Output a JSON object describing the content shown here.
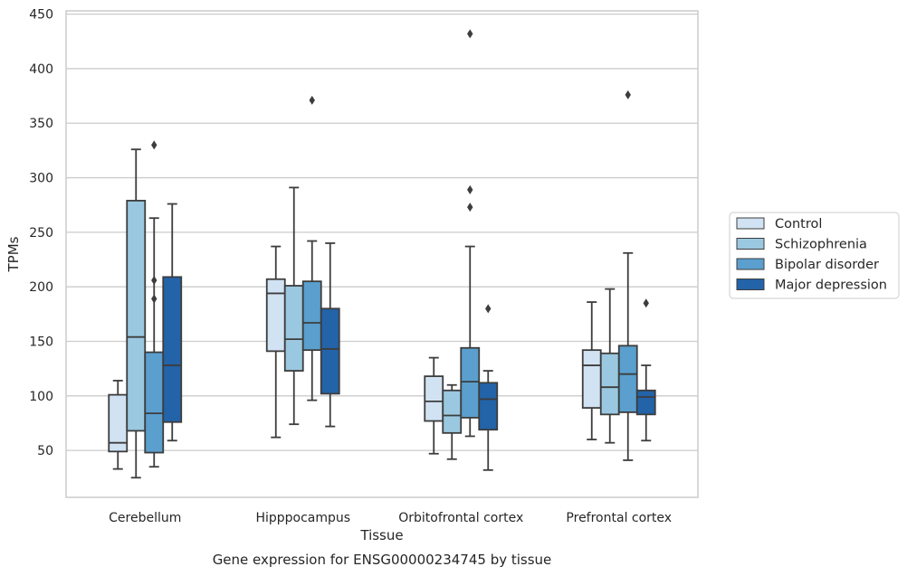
{
  "chart_data": {
    "type": "box",
    "caption": "Gene expression for ENSG00000234745 by tissue",
    "xlabel": "Tissue",
    "ylabel": "TPMs",
    "ylim": [
      7,
      453
    ],
    "yticks": [
      50,
      100,
      150,
      200,
      250,
      300,
      350,
      400,
      450
    ],
    "grid": "horizontal",
    "legend_position": "right",
    "categories": [
      "Cerebellum",
      "Hipppocampus",
      "Orbitofrontal cortex",
      "Prefrontal cortex"
    ],
    "series": [
      {
        "name": "Control",
        "color": "#d1e2f2",
        "boxes": [
          {
            "whislo": 33,
            "q1": 49,
            "med": 57,
            "q3": 101,
            "whishi": 114,
            "fliers": []
          },
          {
            "whislo": 62,
            "q1": 141,
            "med": 194,
            "q3": 207,
            "whishi": 237,
            "fliers": []
          },
          {
            "whislo": 47,
            "q1": 77,
            "med": 95,
            "q3": 118,
            "whishi": 135,
            "fliers": []
          },
          {
            "whislo": 60,
            "q1": 89,
            "med": 128,
            "q3": 142,
            "whishi": 186,
            "fliers": []
          }
        ]
      },
      {
        "name": "Schizophrenia",
        "color": "#9ac8e0",
        "boxes": [
          {
            "whislo": 25,
            "q1": 68,
            "med": 154,
            "q3": 279,
            "whishi": 326,
            "fliers": []
          },
          {
            "whislo": 74,
            "q1": 123,
            "med": 152,
            "q3": 201,
            "whishi": 291,
            "fliers": []
          },
          {
            "whislo": 42,
            "q1": 66,
            "med": 82,
            "q3": 105,
            "whishi": 110,
            "fliers": []
          },
          {
            "whislo": 57,
            "q1": 83,
            "med": 108,
            "q3": 139,
            "whishi": 198,
            "fliers": []
          }
        ]
      },
      {
        "name": "Bipolar disorder",
        "color": "#5a9fce",
        "boxes": [
          {
            "whislo": 35,
            "q1": 48,
            "med": 84,
            "q3": 140,
            "whishi": 263,
            "fliers": [
              189,
              206,
              330
            ]
          },
          {
            "whislo": 96,
            "q1": 142,
            "med": 167,
            "q3": 205,
            "whishi": 242,
            "fliers": [
              371
            ]
          },
          {
            "whislo": 63,
            "q1": 80,
            "med": 113,
            "q3": 144,
            "whishi": 237,
            "fliers": [
              273,
              289,
              432
            ]
          },
          {
            "whislo": 41,
            "q1": 85,
            "med": 120,
            "q3": 146,
            "whishi": 231,
            "fliers": [
              376
            ]
          }
        ]
      },
      {
        "name": "Major depression",
        "color": "#2363a8",
        "boxes": [
          {
            "whislo": 59,
            "q1": 76,
            "med": 128,
            "q3": 209,
            "whishi": 276,
            "fliers": []
          },
          {
            "whislo": 72,
            "q1": 102,
            "med": 143,
            "q3": 180,
            "whishi": 240,
            "fliers": []
          },
          {
            "whislo": 32,
            "q1": 69,
            "med": 97,
            "q3": 112,
            "whishi": 123,
            "fliers": [
              180
            ]
          },
          {
            "whislo": 59,
            "q1": 83,
            "med": 99,
            "q3": 105,
            "whishi": 128,
            "fliers": [
              185
            ]
          }
        ]
      }
    ]
  }
}
